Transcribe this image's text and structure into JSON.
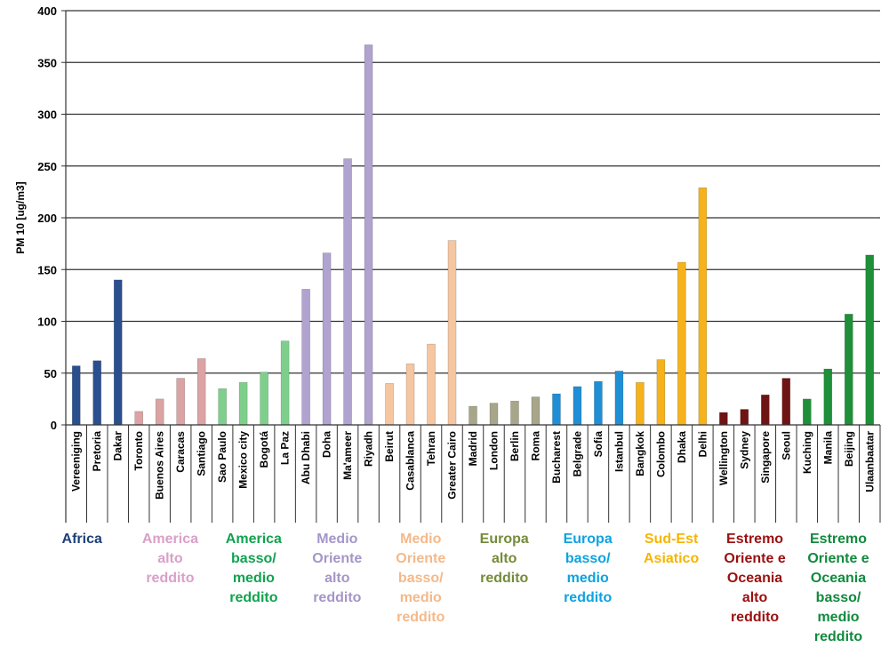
{
  "chart_data": {
    "type": "bar",
    "ylabel": "PM 10 [ug/m3]",
    "ylim": [
      0,
      400
    ],
    "yticks": [
      "0",
      "50",
      "100",
      "150",
      "200",
      "250",
      "300",
      "350",
      "400"
    ],
    "grid": true,
    "legend": "none",
    "categories": [
      "Vereeniging",
      "Pretoria",
      "Dakar",
      "Toronto",
      "Buenos Aires",
      "Caracas",
      "Santiago",
      "Sao Paulo",
      "Mexico city",
      "Bogotá",
      "La Paz",
      "Abu Dhabi",
      "Doha",
      "Ma'ameer",
      "Riyadh",
      "Beirut",
      "Casablanca",
      "Tehran",
      "Greater Cairo",
      "Madrid",
      "London",
      "Berlin",
      "Roma",
      "Bucharest",
      "Belgrade",
      "Sofia",
      "Istanbul",
      "Bangkok",
      "Colombo",
      "Dhaka",
      "Delhi",
      "Wellington",
      "Sydney",
      "Singapore",
      "Seoul",
      "Kuching",
      "Manila",
      "Beijing",
      "Ulaanbaatar"
    ],
    "values": [
      57,
      62,
      140,
      13,
      25,
      45,
      64,
      35,
      41,
      51,
      81,
      131,
      166,
      257,
      367,
      40,
      59,
      78,
      178,
      18,
      21,
      23,
      27,
      30,
      37,
      42,
      52,
      41,
      63,
      157,
      229,
      12,
      15,
      29,
      45,
      25,
      54,
      107,
      164
    ],
    "groups": [
      {
        "label": "Africa",
        "color": "#1f3f7a",
        "bar_color": "#2a4f8f",
        "count": 3
      },
      {
        "label": "America\nalto\nreddito",
        "color": "#d9a0c8",
        "bar_color": "#dba3a3",
        "count": 4
      },
      {
        "label": "America\nbasso/\nmedio\nreddito",
        "color": "#11a34f",
        "bar_color": "#7fcf8c",
        "count": 4
      },
      {
        "label": "Medio\nOriente\nalto\nreddito",
        "color": "#a596c9",
        "bar_color": "#b0a3cf",
        "count": 4
      },
      {
        "label": "Medio\nOriente\nbasso/\nmedio\nreddito",
        "color": "#f4b98a",
        "bar_color": "#f6c6a0",
        "count": 4
      },
      {
        "label": "Europa\nalto\nreddito",
        "color": "#758b3a",
        "bar_color": "#a8a68a",
        "count": 4
      },
      {
        "label": "Europa\nbasso/\nmedio\nreddito",
        "color": "#0ca3e0",
        "bar_color": "#1e8fd6",
        "count": 4
      },
      {
        "label": "Sud-Est\nAsiatico",
        "color": "#f7b500",
        "bar_color": "#f5b21a",
        "count": 4
      },
      {
        "label": "Estremo\nOriente e\nOceania\nalto\nreddito",
        "color": "#9a1010",
        "bar_color": "#6e1414",
        "count": 4
      },
      {
        "label": "Estremo\nOriente e\nOceania\nbasso/\nmedio\nreddito",
        "color": "#118a3e",
        "bar_color": "#1f8f3a",
        "count": 4
      }
    ]
  }
}
